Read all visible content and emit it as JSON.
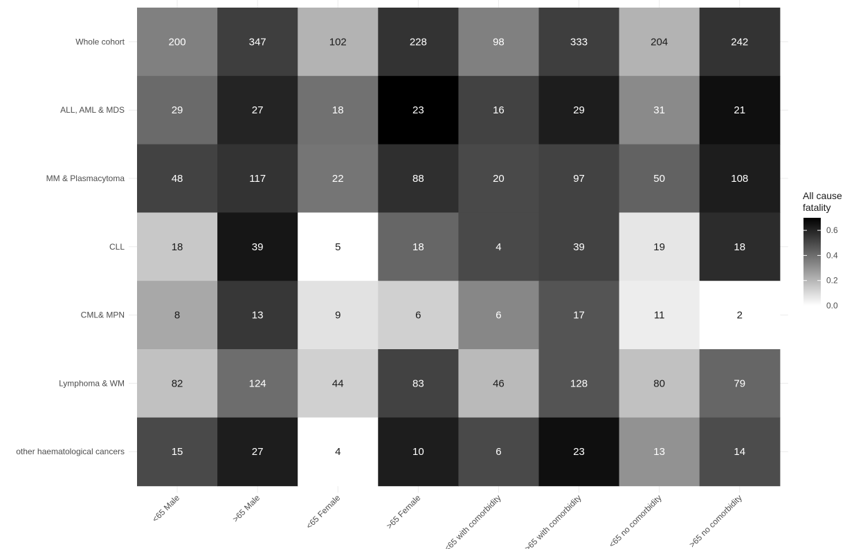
{
  "chart_data": {
    "type": "heatmap",
    "rows": [
      "Whole cohort",
      "ALL, AML & MDS",
      "MM & Plasmacytoma",
      "CLL",
      "CML& MPN",
      "Lymphoma & WM",
      "other haematological cancers"
    ],
    "columns": [
      "<65 Male",
      ">65 Male",
      "<65 Female",
      ">65 Female",
      "<65 with comorbidity",
      ">65 with comorbidity",
      "<65 no comorbidity",
      ">65 no comorbidity"
    ],
    "counts": [
      [
        200,
        347,
        102,
        228,
        98,
        333,
        204,
        242
      ],
      [
        29,
        27,
        18,
        23,
        16,
        29,
        31,
        21
      ],
      [
        48,
        117,
        22,
        88,
        20,
        97,
        50,
        108
      ],
      [
        18,
        39,
        5,
        18,
        4,
        39,
        19,
        18
      ],
      [
        8,
        13,
        9,
        6,
        6,
        17,
        11,
        2
      ],
      [
        82,
        124,
        44,
        83,
        46,
        128,
        80,
        79
      ],
      [
        15,
        27,
        4,
        10,
        6,
        23,
        13,
        14
      ]
    ],
    "fatality": [
      [
        0.35,
        0.53,
        0.21,
        0.56,
        0.35,
        0.53,
        0.21,
        0.56
      ],
      [
        0.41,
        0.6,
        0.39,
        0.7,
        0.52,
        0.62,
        0.32,
        0.66
      ],
      [
        0.52,
        0.56,
        0.38,
        0.57,
        0.5,
        0.52,
        0.43,
        0.62
      ],
      [
        0.15,
        0.64,
        0.0,
        0.42,
        0.5,
        0.52,
        0.07,
        0.58
      ],
      [
        0.24,
        0.55,
        0.08,
        0.13,
        0.33,
        0.47,
        0.05,
        0.0
      ],
      [
        0.17,
        0.4,
        0.13,
        0.52,
        0.19,
        0.47,
        0.17,
        0.42
      ],
      [
        0.5,
        0.62,
        0.0,
        0.62,
        0.5,
        0.66,
        0.3,
        0.49
      ]
    ],
    "legend": {
      "title_line1": "All cause",
      "title_line2": "fatality",
      "ticks": [
        "0.0",
        "0.2",
        "0.4",
        "0.6"
      ],
      "tick_values": [
        0.0,
        0.2,
        0.4,
        0.6
      ],
      "range": [
        0,
        0.7
      ]
    },
    "grid": false,
    "legend_position": "right"
  }
}
